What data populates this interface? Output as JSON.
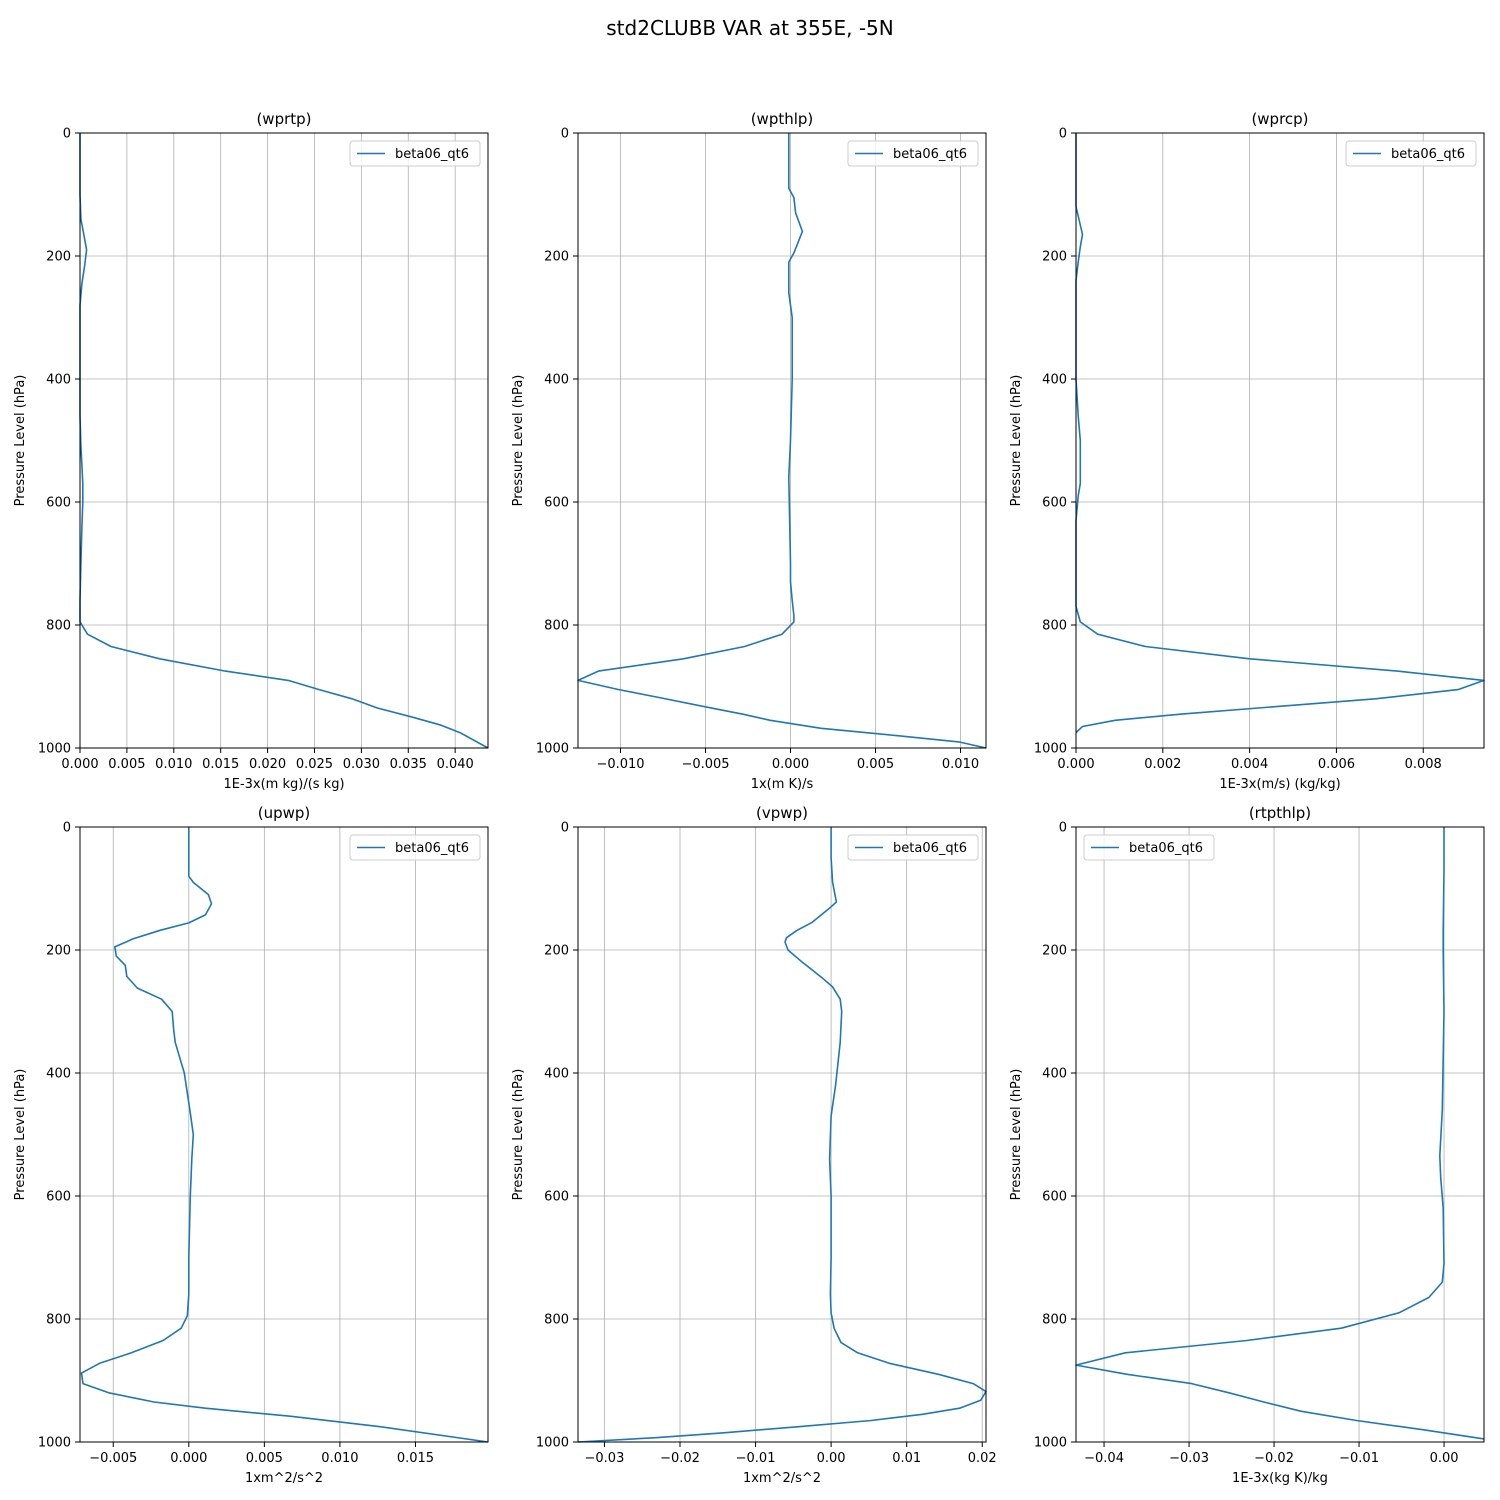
{
  "figure": {
    "title": "std2CLUBB VAR at 355E, -5N",
    "line_color": "#1f77b4",
    "grid_color": "#b0b0b0"
  },
  "chart_data": [
    {
      "type": "line",
      "title": "(wprtp)",
      "xlabel": "1E-3x(m kg)/(s kg)",
      "ylabel": "Pressure Level (hPa)",
      "xlim": [
        0.0,
        0.0435
      ],
      "ylim": [
        1000,
        0
      ],
      "y_inverted": true,
      "xticks": [
        0.0,
        0.005,
        0.01,
        0.015,
        0.02,
        0.025,
        0.03,
        0.035,
        0.04
      ],
      "xtick_labels": [
        "0.000",
        "0.005",
        "0.010",
        "0.015",
        "0.020",
        "0.025",
        "0.030",
        "0.035",
        "0.040"
      ],
      "yticks": [
        0,
        200,
        400,
        600,
        800,
        1000
      ],
      "ytick_labels": [
        "0",
        "200",
        "400",
        "600",
        "800",
        "1000"
      ],
      "grid": true,
      "legend_loc": "upper right",
      "series": [
        {
          "name": "beta06_qt6",
          "x": [
            0,
            0,
            0,
            0.0001,
            0.0004,
            0.0007,
            0.0005,
            0.0002,
            0,
            0,
            0,
            0,
            0.0001,
            0.0002,
            0.0003,
            0.0003,
            0.0002,
            0.0001,
            0,
            0,
            0.0008,
            0.0033,
            0.0085,
            0.0155,
            0.0222,
            0.0255,
            0.029,
            0.0317,
            0.0355,
            0.0385,
            0.0405,
            0.0435
          ],
          "y": [
            0,
            50,
            100,
            140,
            165,
            190,
            215,
            245,
            280,
            330,
            400,
            460,
            510,
            540,
            570,
            600,
            640,
            700,
            760,
            795,
            815,
            835,
            855,
            875,
            890,
            905,
            920,
            935,
            950,
            963,
            975,
            1000
          ]
        }
      ]
    },
    {
      "type": "line",
      "title": "(wpthlp)",
      "xlabel": "1x(m K)/s",
      "ylabel": "Pressure Level (hPa)",
      "xlim": [
        -0.0125,
        0.0115
      ],
      "ylim": [
        1000,
        0
      ],
      "y_inverted": true,
      "xticks": [
        -0.01,
        -0.005,
        0.0,
        0.005,
        0.01
      ],
      "xtick_labels": [
        "−0.010",
        "−0.005",
        "0.000",
        "0.005",
        "0.010"
      ],
      "yticks": [
        0,
        200,
        400,
        600,
        800,
        1000
      ],
      "ytick_labels": [
        "0",
        "200",
        "400",
        "600",
        "800",
        "1000"
      ],
      "grid": true,
      "legend_loc": "upper right",
      "series": [
        {
          "name": "beta06_qt6",
          "x": [
            -0.0001,
            -0.0001,
            -0.0001,
            0.0002,
            0.0003,
            0.0007,
            0.0002,
            -0.0001,
            -0.0001,
            0.0001,
            0.0001,
            0.0,
            -0.0001,
            0.0,
            0.0,
            0.0001,
            0.0002,
            0.0002,
            -0.0005,
            -0.0027,
            -0.0063,
            -0.0113,
            -0.0125,
            -0.0101,
            -0.0077,
            -0.0052,
            -0.0028,
            -0.0012,
            0.0018,
            0.0063,
            0.0099,
            0.0115
          ],
          "y": [
            0,
            50,
            90,
            105,
            130,
            160,
            195,
            210,
            260,
            300,
            400,
            500,
            560,
            700,
            730,
            760,
            785,
            795,
            815,
            835,
            855,
            875,
            890,
            905,
            918,
            932,
            945,
            955,
            968,
            980,
            990,
            1000
          ]
        }
      ]
    },
    {
      "type": "line",
      "title": "(wprcp)",
      "xlabel": "1E-3x(m/s) (kg/kg)",
      "ylabel": "Pressure Level (hPa)",
      "xlim": [
        0.0,
        0.0094
      ],
      "ylim": [
        1000,
        0
      ],
      "y_inverted": true,
      "xticks": [
        0.0,
        0.002,
        0.004,
        0.006,
        0.008
      ],
      "xtick_labels": [
        "0.000",
        "0.002",
        "0.004",
        "0.006",
        "0.008"
      ],
      "yticks": [
        0,
        200,
        400,
        600,
        800,
        1000
      ],
      "ytick_labels": [
        "0",
        "200",
        "400",
        "600",
        "800",
        "1000"
      ],
      "grid": true,
      "legend_loc": "upper right",
      "series": [
        {
          "name": "beta06_qt6",
          "x": [
            0,
            0,
            5e-05,
            0.00015,
            0.0001,
            5e-05,
            0,
            0,
            0,
            5e-05,
            0.0001,
            0.0001,
            5e-05,
            0,
            0,
            0,
            0.0001,
            0.0005,
            0.0016,
            0.004,
            0.0074,
            0.0094,
            0.0088,
            0.0069,
            0.0042,
            0.0024,
            0.0009,
            0.00015,
            0
          ],
          "y": [
            0,
            120,
            135,
            165,
            185,
            210,
            240,
            290,
            400,
            460,
            500,
            570,
            590,
            630,
            700,
            770,
            795,
            815,
            835,
            855,
            875,
            890,
            905,
            920,
            935,
            945,
            955,
            965,
            975
          ]
        }
      ]
    },
    {
      "type": "line",
      "title": "(upwp)",
      "xlabel": "1xm^2/s^2",
      "ylabel": "Pressure Level (hPa)",
      "xlim": [
        -0.0072,
        0.0198
      ],
      "ylim": [
        1000,
        0
      ],
      "y_inverted": true,
      "xticks": [
        -0.005,
        0.0,
        0.005,
        0.01,
        0.015
      ],
      "xtick_labels": [
        "−0.005",
        "0.000",
        "0.005",
        "0.010",
        "0.015"
      ],
      "yticks": [
        0,
        200,
        400,
        600,
        800,
        1000
      ],
      "ytick_labels": [
        "0",
        "200",
        "400",
        "600",
        "800",
        "1000"
      ],
      "grid": true,
      "legend_loc": "upper right",
      "series": [
        {
          "name": "beta06_qt6",
          "x": [
            0,
            0,
            0,
            0.0003,
            0.0013,
            0.0015,
            0.0011,
            0,
            -0.0019,
            -0.0037,
            -0.0049,
            -0.0048,
            -0.0042,
            -0.0041,
            -0.0034,
            -0.0018,
            -0.0011,
            -0.001,
            -0.0009,
            -0.0003,
            0.0001,
            0.0003,
            0.0002,
            0.0001,
            0,
            0,
            -0.0001,
            -0.0005,
            -0.0017,
            -0.0038,
            -0.0059,
            -0.0071,
            -0.007,
            -0.0053,
            -0.0023,
            0.0011,
            0.0067,
            0.0126,
            0.0198
          ],
          "y": [
            0,
            50,
            80,
            90,
            110,
            125,
            143,
            156,
            168,
            182,
            195,
            210,
            225,
            243,
            262,
            280,
            300,
            330,
            350,
            400,
            465,
            500,
            540,
            600,
            700,
            760,
            795,
            815,
            835,
            855,
            872,
            888,
            905,
            920,
            935,
            945,
            958,
            975,
            1000
          ]
        }
      ]
    },
    {
      "type": "line",
      "title": "(vpwp)",
      "xlabel": "1xm^2/s^2",
      "ylabel": "Pressure Level (hPa)",
      "xlim": [
        -0.0335,
        0.0205
      ],
      "ylim": [
        1000,
        0
      ],
      "y_inverted": true,
      "xticks": [
        -0.03,
        -0.02,
        -0.01,
        0.0,
        0.01,
        0.02
      ],
      "xtick_labels": [
        "−0.03",
        "−0.02",
        "−0.01",
        "0.00",
        "0.01",
        "0.02"
      ],
      "yticks": [
        0,
        200,
        400,
        600,
        800,
        1000
      ],
      "ytick_labels": [
        "0",
        "200",
        "400",
        "600",
        "800",
        "1000"
      ],
      "grid": true,
      "legend_loc": "upper right",
      "series": [
        {
          "name": "beta06_qt6",
          "x": [
            0,
            0,
            0.0002,
            0.0007,
            -0.0003,
            -0.0025,
            -0.0045,
            -0.0059,
            -0.0061,
            -0.0057,
            -0.0038,
            -0.0012,
            0.0002,
            0.0012,
            0.0014,
            0.0012,
            0.0006,
            0,
            -0.0002,
            0,
            0,
            -0.0001,
            0,
            0.0004,
            0.0013,
            0.0035,
            0.0077,
            0.0142,
            0.0188,
            0.0205,
            0.0198,
            0.017,
            0.0121,
            0.0053,
            -0.0041,
            -0.0142,
            -0.0232,
            -0.0335
          ],
          "y": [
            0,
            50,
            90,
            122,
            133,
            155,
            168,
            180,
            187,
            200,
            220,
            245,
            260,
            280,
            300,
            350,
            420,
            470,
            540,
            600,
            700,
            760,
            790,
            815,
            838,
            855,
            872,
            890,
            905,
            918,
            932,
            945,
            955,
            965,
            975,
            985,
            993,
            1000
          ]
        }
      ]
    },
    {
      "type": "line",
      "title": "(rtpthlp)",
      "xlabel": "1E-3x(kg K)/kg",
      "ylabel": "Pressure Level (hPa)",
      "xlim": [
        -0.0433,
        0.0047
      ],
      "ylim": [
        1000,
        0
      ],
      "y_inverted": true,
      "xticks": [
        -0.04,
        -0.03,
        -0.02,
        -0.01,
        0.0
      ],
      "xtick_labels": [
        "−0.04",
        "−0.03",
        "−0.02",
        "−0.01",
        "0.00"
      ],
      "yticks": [
        0,
        200,
        400,
        600,
        800,
        1000
      ],
      "ytick_labels": [
        "0",
        "200",
        "400",
        "600",
        "800",
        "1000"
      ],
      "grid": true,
      "legend_loc": "upper left",
      "series": [
        {
          "name": "beta06_qt6",
          "x": [
            0,
            0,
            -0.0001,
            -0.0001,
            0,
            -0.0002,
            -0.0005,
            -0.0004,
            -0.0001,
            0,
            -0.0002,
            -0.0018,
            -0.0053,
            -0.0121,
            -0.0232,
            -0.0375,
            -0.0433,
            -0.0373,
            -0.0297,
            -0.0253,
            -0.0212,
            -0.0168,
            -0.0103,
            -0.0025,
            0.0047
          ],
          "y": [
            0,
            70,
            170,
            200,
            300,
            460,
            535,
            570,
            620,
            710,
            740,
            765,
            790,
            815,
            835,
            855,
            875,
            890,
            905,
            920,
            935,
            950,
            965,
            980,
            995
          ]
        }
      ]
    }
  ]
}
